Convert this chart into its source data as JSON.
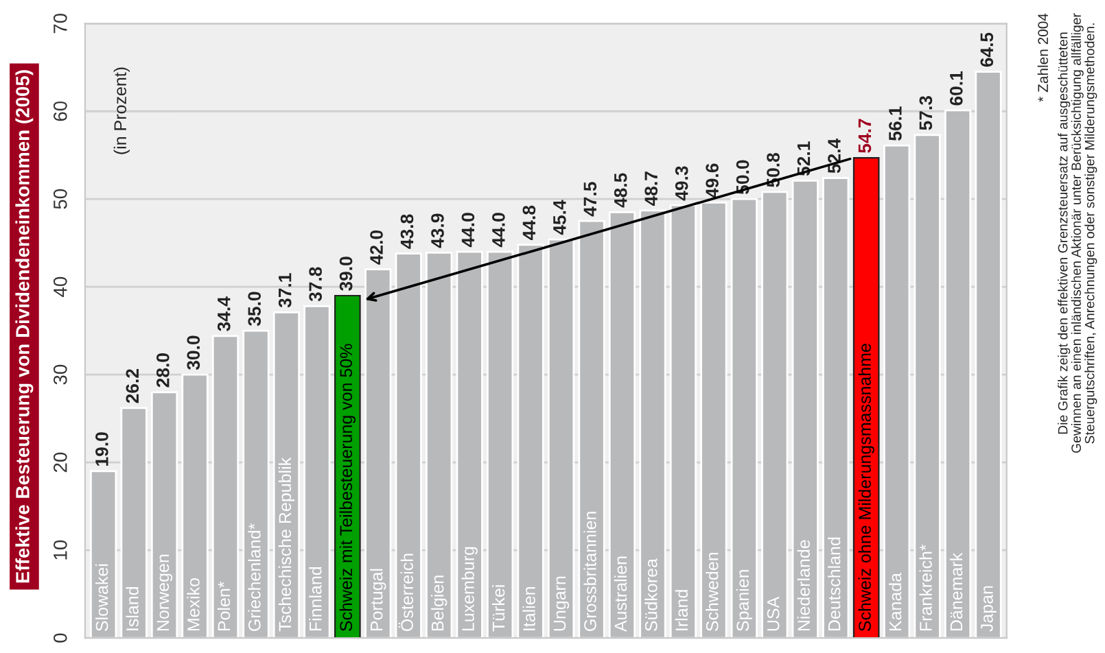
{
  "chart_data": {
    "type": "bar",
    "title": "Effektive Besteuerung von Dividendeneinkommen (2005)",
    "categories": [
      "Slowakei",
      "Island",
      "Norwegen",
      "Mexiko",
      "Polen*",
      "Griechenland*",
      "Tschechische Republik",
      "Finnland",
      "Schweiz mit Teilbesteuerung von 50%",
      "Portugal",
      "Österreich",
      "Belgien",
      "Luxemburg",
      "Türkei",
      "Italien",
      "Ungarn",
      "Grossbritannien",
      "Australien",
      "Südkorea",
      "Irland",
      "Schweden",
      "Spanien",
      "USA",
      "Niederlande",
      "Deutschland",
      "Schweiz ohne Milderungsmassnahme",
      "Kanada",
      "Frankreich*",
      "Dänemark",
      "Japan"
    ],
    "values": [
      19.0,
      26.2,
      28.0,
      30.0,
      34.4,
      35.0,
      37.1,
      37.8,
      39.0,
      42.0,
      43.8,
      43.9,
      44.0,
      44.0,
      44.8,
      45.4,
      47.5,
      48.5,
      48.7,
      49.3,
      49.6,
      50.0,
      50.8,
      52.1,
      52.4,
      54.7,
      56.1,
      57.3,
      60.1,
      64.5
    ],
    "colors": [
      "#b8b9bb",
      "#b8b9bb",
      "#b8b9bb",
      "#b8b9bb",
      "#b8b9bb",
      "#b8b9bb",
      "#b8b9bb",
      "#b8b9bb",
      "#00a000",
      "#b8b9bb",
      "#b8b9bb",
      "#b8b9bb",
      "#b8b9bb",
      "#b8b9bb",
      "#b8b9bb",
      "#b8b9bb",
      "#b8b9bb",
      "#b8b9bb",
      "#b8b9bb",
      "#b8b9bb",
      "#b8b9bb",
      "#b8b9bb",
      "#b8b9bb",
      "#b8b9bb",
      "#b8b9bb",
      "#ff0000",
      "#b8b9bb",
      "#b8b9bb",
      "#b8b9bb",
      "#b8b9bb"
    ],
    "value_labels": [
      "19.0",
      "26.2",
      "28.0",
      "30.0",
      "34.4",
      "35.0",
      "37.1",
      "37.8",
      "39.0",
      "42.0",
      "43.8",
      "43.9",
      "44.0",
      "44.0",
      "44.8",
      "45.4",
      "47.5",
      "48.5",
      "48.7",
      "49.3",
      "49.6",
      "50.0",
      "50.8",
      "52.1",
      "52.4",
      "54.7",
      "56.1",
      "57.3",
      "60.1",
      "64.5"
    ],
    "ylim": [
      0,
      70
    ],
    "yticks": [
      0,
      10,
      20,
      30,
      40,
      50,
      60,
      70
    ],
    "grid": "y",
    "legend": false,
    "annotations": [
      "(in Prozent)",
      "* Zahlen 2004",
      "Die Grafik zeigt den effektiven Grenzsteuersatz auf ausgeschütteten\nGewinnen an einen inländischen Aktionär unter Berücksichtigung allfälliger\nSteuergutschriften, Anrechnungen oder sonstiger Milderungsmethoden."
    ]
  }
}
